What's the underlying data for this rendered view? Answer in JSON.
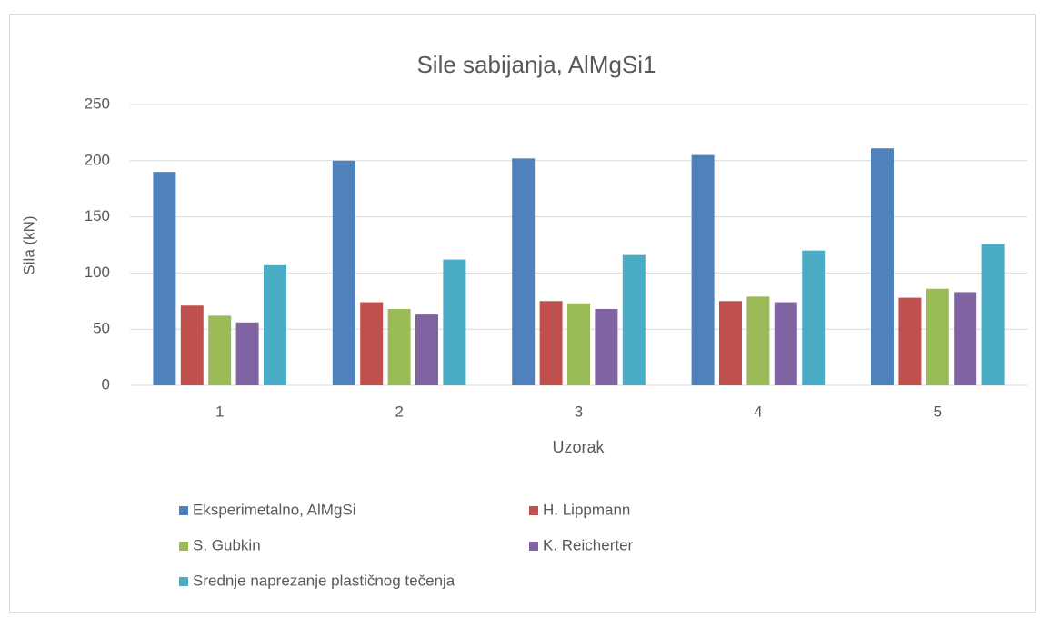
{
  "chart_data": {
    "type": "bar",
    "title": "Sile sabijanja, AlMgSi1",
    "x_label": "Uzorak",
    "y_label": "Sila (kN)",
    "categories": [
      "1",
      "2",
      "3",
      "4",
      "5"
    ],
    "series": [
      {
        "name": "Eksperimetalno, AlMgSi",
        "color": "#4f81bd",
        "values": [
          190,
          200,
          202,
          205,
          211
        ]
      },
      {
        "name": "H. Lippmann",
        "color": "#c0504d",
        "values": [
          71,
          74,
          75,
          75,
          78
        ]
      },
      {
        "name": "S. Gubkin",
        "color": "#9bbb59",
        "values": [
          62,
          68,
          73,
          79,
          86
        ]
      },
      {
        "name": "K. Reicherter",
        "color": "#8064a2",
        "values": [
          56,
          63,
          68,
          74,
          83
        ]
      },
      {
        "name": "Srednje naprezanje plastičnog tečenja",
        "color": "#4bacc6",
        "values": [
          107,
          112,
          116,
          120,
          126
        ]
      }
    ],
    "ylim": [
      0,
      250
    ],
    "yticks": [
      0,
      50,
      100,
      150,
      200,
      250
    ],
    "grid": true,
    "legend": "bottom"
  }
}
